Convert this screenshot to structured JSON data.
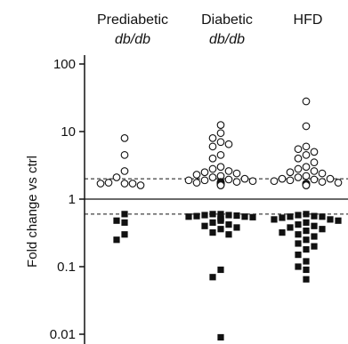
{
  "chart_data": {
    "type": "scatter",
    "y_scale": "log",
    "ylim": [
      0.008,
      150
    ],
    "ylabel": "Fold change vs ctrl",
    "y_ticks": [
      {
        "value": 100,
        "label": "100"
      },
      {
        "value": 10,
        "label": "10"
      },
      {
        "value": 1,
        "label": "1"
      },
      {
        "value": 0.1,
        "label": "0.1"
      },
      {
        "value": 0.01,
        "label": "0.01"
      }
    ],
    "groups": [
      {
        "label": "Prediabetic",
        "sublabel": "db/db"
      },
      {
        "label": "Diabetic",
        "sublabel": "db/db"
      },
      {
        "label": "HFD",
        "sublabel": ""
      }
    ],
    "reference_lines": [
      {
        "value": 1.0,
        "style": "solid"
      },
      {
        "value": 2.0,
        "style": "dashed"
      },
      {
        "value": 0.6,
        "style": "dashed"
      }
    ],
    "series": [
      {
        "marker": "open-circle",
        "groups": [
          [
            8.0,
            4.5,
            2.6,
            2.1,
            1.7,
            1.7,
            1.75,
            1.6,
            1.7
          ],
          [
            12.5,
            9.5,
            8.0,
            7.0,
            6.5,
            6.0,
            4.5,
            4.0,
            3.0,
            2.8,
            2.6,
            2.5,
            2.4,
            2.3,
            2.2,
            2.1,
            2.0,
            1.95,
            1.9,
            1.9,
            1.85,
            1.8,
            1.8,
            1.75,
            1.75,
            1.7,
            1.7,
            1.7,
            1.65,
            1.65,
            1.6,
            1.6
          ],
          [
            28.0,
            12.0,
            6.0,
            5.5,
            5.0,
            4.5,
            4.0,
            3.5,
            3.0,
            2.8,
            2.6,
            2.5,
            2.4,
            2.2,
            2.1,
            2.0,
            2.0,
            1.95,
            1.9,
            1.85,
            1.8,
            1.75,
            1.7,
            1.7,
            1.65,
            1.6,
            1.6
          ]
        ]
      },
      {
        "marker": "filled-square",
        "groups": [
          [
            0.6,
            0.48,
            0.45,
            0.3,
            0.25
          ],
          [
            0.6,
            0.6,
            0.58,
            0.58,
            0.57,
            0.56,
            0.55,
            0.55,
            0.54,
            0.53,
            0.52,
            0.5,
            0.5,
            0.48,
            0.45,
            0.42,
            0.4,
            0.38,
            0.36,
            0.32,
            0.3,
            0.09,
            0.07,
            0.009
          ],
          [
            0.6,
            0.58,
            0.56,
            0.55,
            0.55,
            0.53,
            0.5,
            0.5,
            0.48,
            0.45,
            0.42,
            0.4,
            0.38,
            0.36,
            0.34,
            0.32,
            0.3,
            0.28,
            0.25,
            0.22,
            0.2,
            0.18,
            0.15,
            0.12,
            0.1,
            0.09,
            0.065
          ]
        ]
      }
    ]
  }
}
